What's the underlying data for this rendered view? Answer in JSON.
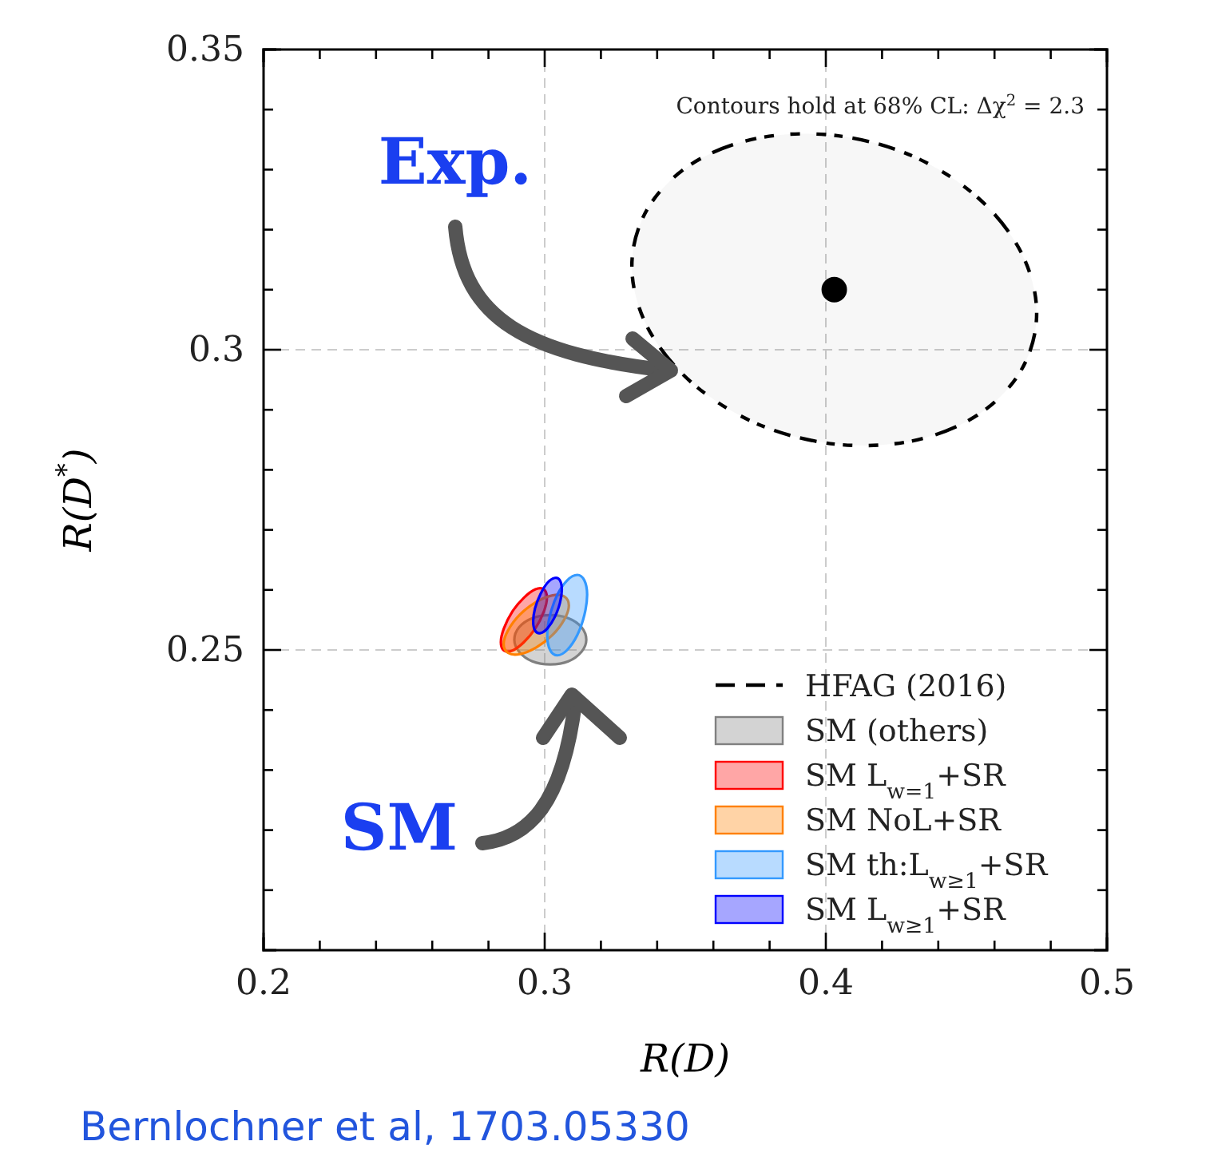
{
  "chart_data": {
    "type": "area",
    "xlabel": "R(D)",
    "ylabel": "R(D$^{*}$)",
    "xlim": [
      0.2,
      0.5
    ],
    "ylim": [
      0.2,
      0.35
    ],
    "xticks": [
      0.2,
      {
        "value": 0.22,
        "label": null
      },
      {
        "value": 0.24,
        "label": null
      },
      {
        "value": 0.26,
        "label": null
      },
      {
        "value": 0.28,
        "label": null
      },
      0.3,
      {
        "value": 0.32,
        "label": null
      },
      {
        "value": 0.34,
        "label": null
      },
      {
        "value": 0.36,
        "label": null
      },
      {
        "value": 0.38,
        "label": null
      },
      0.4,
      {
        "value": 0.42,
        "label": null
      },
      {
        "value": 0.44,
        "label": null
      },
      {
        "value": 0.46,
        "label": null
      },
      {
        "value": 0.48,
        "label": null
      },
      0.5
    ],
    "yticks": [
      {
        "value": 0.21,
        "label": null
      },
      {
        "value": 0.22,
        "label": null
      },
      {
        "value": 0.23,
        "label": null
      },
      {
        "value": 0.24,
        "label": null
      },
      0.25,
      {
        "value": 0.26,
        "label": null
      },
      {
        "value": 0.27,
        "label": null
      },
      {
        "value": 0.28,
        "label": null
      },
      {
        "value": 0.29,
        "label": null
      },
      0.3,
      {
        "value": 0.31,
        "label": null
      },
      {
        "value": 0.32,
        "label": null
      },
      {
        "value": 0.33,
        "label": null
      },
      {
        "value": 0.34,
        "label": null
      },
      0.35
    ],
    "grid": true,
    "legend": "bottom right",
    "series": [
      {
        "name": "HFAG (2016)",
        "color": "#000000",
        "line_style": "dashed",
        "x": [
          0.475,
          0.4695,
          0.4539,
          0.4306,
          0.403,
          0.3754,
          0.3521,
          0.3365,
          0.331,
          0.3365,
          0.3521,
          0.3754,
          0.403,
          0.4306,
          0.4539,
          0.4695
        ],
        "values": [
          0.3061,
          0.3162,
          0.3254,
          0.3323,
          0.3357,
          0.3352,
          0.3309,
          0.3234,
          0.3139,
          0.3038,
          0.2946,
          0.2877,
          0.2843,
          0.2848,
          0.2891,
          0.2966
        ]
      },
      {
        "name": "SM (others)",
        "color": "#808080",
        "x": [
          0.3148,
          0.3131,
          0.3084,
          0.302,
          0.2956,
          0.2909,
          0.2892,
          0.2909,
          0.2956,
          0.302,
          0.3084,
          0.3131
        ],
        "values": [
          0.2517,
          0.2538,
          0.2553,
          0.2558,
          0.2553,
          0.2538,
          0.2517,
          0.2497,
          0.2481,
          0.2476,
          0.2481,
          0.2497
        ]
      },
      {
        "name": "SM L$_{w=1}$+SR",
        "color": "#ff0000",
        "x": [
          0.3008,
          0.2997,
          0.2967,
          0.2926,
          0.2885,
          0.2855,
          0.2844,
          0.2855,
          0.2885,
          0.2926,
          0.2967,
          0.2997
        ],
        "values": [
          0.2587,
          0.2601,
          0.2601,
          0.2587,
          0.2564,
          0.2536,
          0.2513,
          0.2499,
          0.2499,
          0.2513,
          0.2536,
          0.2564
        ]
      },
      {
        "name": "SM NoL+SR",
        "color": "#ff8000",
        "x": [
          0.3086,
          0.307,
          0.3028,
          0.297,
          0.2912,
          0.287,
          0.2854,
          0.287,
          0.2912,
          0.297,
          0.3028,
          0.307
        ],
        "values": [
          0.2574,
          0.2589,
          0.2591,
          0.258,
          0.2559,
          0.2533,
          0.251,
          0.2495,
          0.2493,
          0.2504,
          0.2525,
          0.2551
        ]
      },
      {
        "name": "SM th:L$_{w≥1}$+SR",
        "color": "#3399ff",
        "x": [
          0.3151,
          0.3141,
          0.3116,
          0.308,
          0.3045,
          0.3019,
          0.3009,
          0.3019,
          0.3045,
          0.308,
          0.3116,
          0.3141
        ],
        "values": [
          0.2592,
          0.2616,
          0.2625,
          0.2616,
          0.2592,
          0.2558,
          0.2525,
          0.25,
          0.2491,
          0.25,
          0.2525,
          0.2558
        ]
      },
      {
        "name": "SM L$_{w≥1}$+SR",
        "color": "#0000ff",
        "x": [
          0.3061,
          0.3054,
          0.3036,
          0.301,
          0.2985,
          0.2966,
          0.2959,
          0.2966,
          0.2985,
          0.301,
          0.3036,
          0.3054
        ],
        "values": [
          0.26,
          0.2616,
          0.262,
          0.2612,
          0.2593,
          0.257,
          0.2548,
          0.2532,
          0.2528,
          0.2536,
          0.2555,
          0.2578
        ]
      },
      {
        "type": "scatter",
        "color": "#000000",
        "marker": "circle",
        "x": [
          0.403
        ],
        "values": [
          0.31
        ]
      }
    ],
    "annotations": [
      "Contours hold at 68% CL: Δχ$^{2}$ = 2.3",
      "Bernlochner et al, 1703.05330",
      "Exp.",
      "SM"
    ]
  }
}
